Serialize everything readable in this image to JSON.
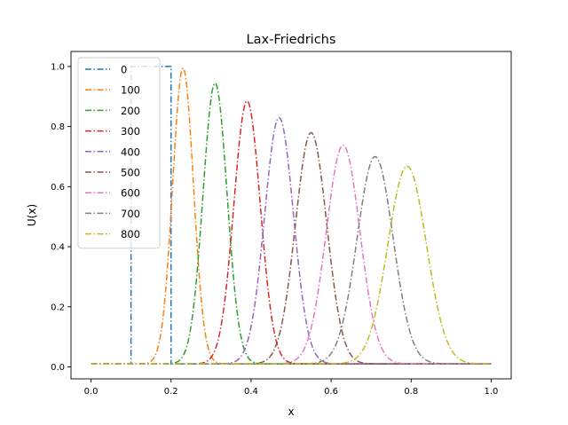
{
  "chart_data": {
    "type": "line",
    "title": "Lax-Friedrichs",
    "xlabel": "x",
    "ylabel": "U(x)",
    "xlim": [
      -0.05,
      1.05
    ],
    "ylim": [
      -0.04,
      1.05
    ],
    "xticks": [
      "0.0",
      "0.2",
      "0.4",
      "0.6",
      "0.8",
      "1.0"
    ],
    "yticks": [
      "0.0",
      "0.2",
      "0.4",
      "0.6",
      "0.8",
      "1.0"
    ],
    "grid": false,
    "legend_position": "top-left",
    "baseline": 0.01,
    "line_style": "dash-dot",
    "series": [
      {
        "name": "0",
        "shape": "step",
        "x_start": 0.1,
        "x_end": 0.2,
        "peak": 1.0,
        "color": "#1f77b4"
      },
      {
        "name": "100",
        "shape": "bump",
        "center": 0.23,
        "peak": 0.995,
        "width": 0.026,
        "color": "#ff7f0e"
      },
      {
        "name": "200",
        "shape": "bump",
        "center": 0.31,
        "peak": 0.945,
        "width": 0.03,
        "color": "#2ca02c"
      },
      {
        "name": "300",
        "shape": "bump",
        "center": 0.39,
        "peak": 0.885,
        "width": 0.033,
        "color": "#d62728"
      },
      {
        "name": "400",
        "shape": "bump",
        "center": 0.47,
        "peak": 0.83,
        "width": 0.036,
        "color": "#9467bd"
      },
      {
        "name": "500",
        "shape": "bump",
        "center": 0.55,
        "peak": 0.78,
        "width": 0.039,
        "color": "#8c564b"
      },
      {
        "name": "600",
        "shape": "bump",
        "center": 0.63,
        "peak": 0.738,
        "width": 0.042,
        "color": "#e377c2"
      },
      {
        "name": "700",
        "shape": "bump",
        "center": 0.71,
        "peak": 0.7,
        "width": 0.045,
        "color": "#7f7f7f"
      },
      {
        "name": "800",
        "shape": "bump",
        "center": 0.79,
        "peak": 0.668,
        "width": 0.048,
        "color": "#bcbd22"
      }
    ]
  }
}
